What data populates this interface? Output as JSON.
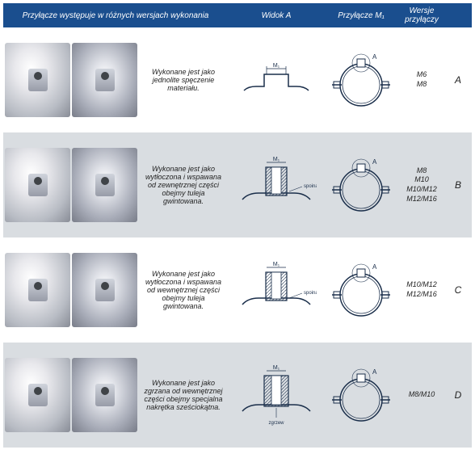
{
  "header": {
    "desc": "Przyłącze występuje w różnych wersjach wykonania",
    "view": "Widok A",
    "sizes": "Przyłącze M₁",
    "version": "Wersje przyłączy"
  },
  "rows": [
    {
      "desc": "Wykonane jest jako jednolite spęczenie materiału.",
      "sizes": [
        "M6",
        "M8"
      ],
      "version": "A",
      "alt": false,
      "diagram": "flat",
      "label_m": "M₁",
      "label_a": "A"
    },
    {
      "desc": "Wykonane jest jako wytłoczona i wspawana od zewnętrznej części obejmy tuleja gwintowana.",
      "sizes": [
        "M8",
        "M10",
        "M10/M12",
        "M12/M16"
      ],
      "version": "B",
      "alt": true,
      "diagram": "weld-out",
      "label_m": "M₁",
      "label_a": "A",
      "callout": "spoina"
    },
    {
      "desc": "Wykonane jest jako wytłoczona i wspawana od wewnętrznej części obejmy tuleja gwintowana.",
      "sizes": [
        "M10/M12",
        "M12/M16"
      ],
      "version": "C",
      "alt": false,
      "diagram": "weld-in",
      "label_m": "M₁",
      "label_a": "A",
      "callout": "spoina"
    },
    {
      "desc": "Wykonane jest jako zgrzana od wewnętrznej części obejmy specjalna nakrętka sześciokątna.",
      "sizes": [
        "M8/M10"
      ],
      "version": "D",
      "alt": true,
      "diagram": "hex",
      "label_m": "M₁",
      "label_a": "A",
      "callout": "zgrzew"
    }
  ],
  "colors": {
    "header_bg": "#1a4e8e",
    "alt_bg": "#d9dde1",
    "stroke": "#1a2e4a",
    "hatch": "#1a2e4a"
  }
}
